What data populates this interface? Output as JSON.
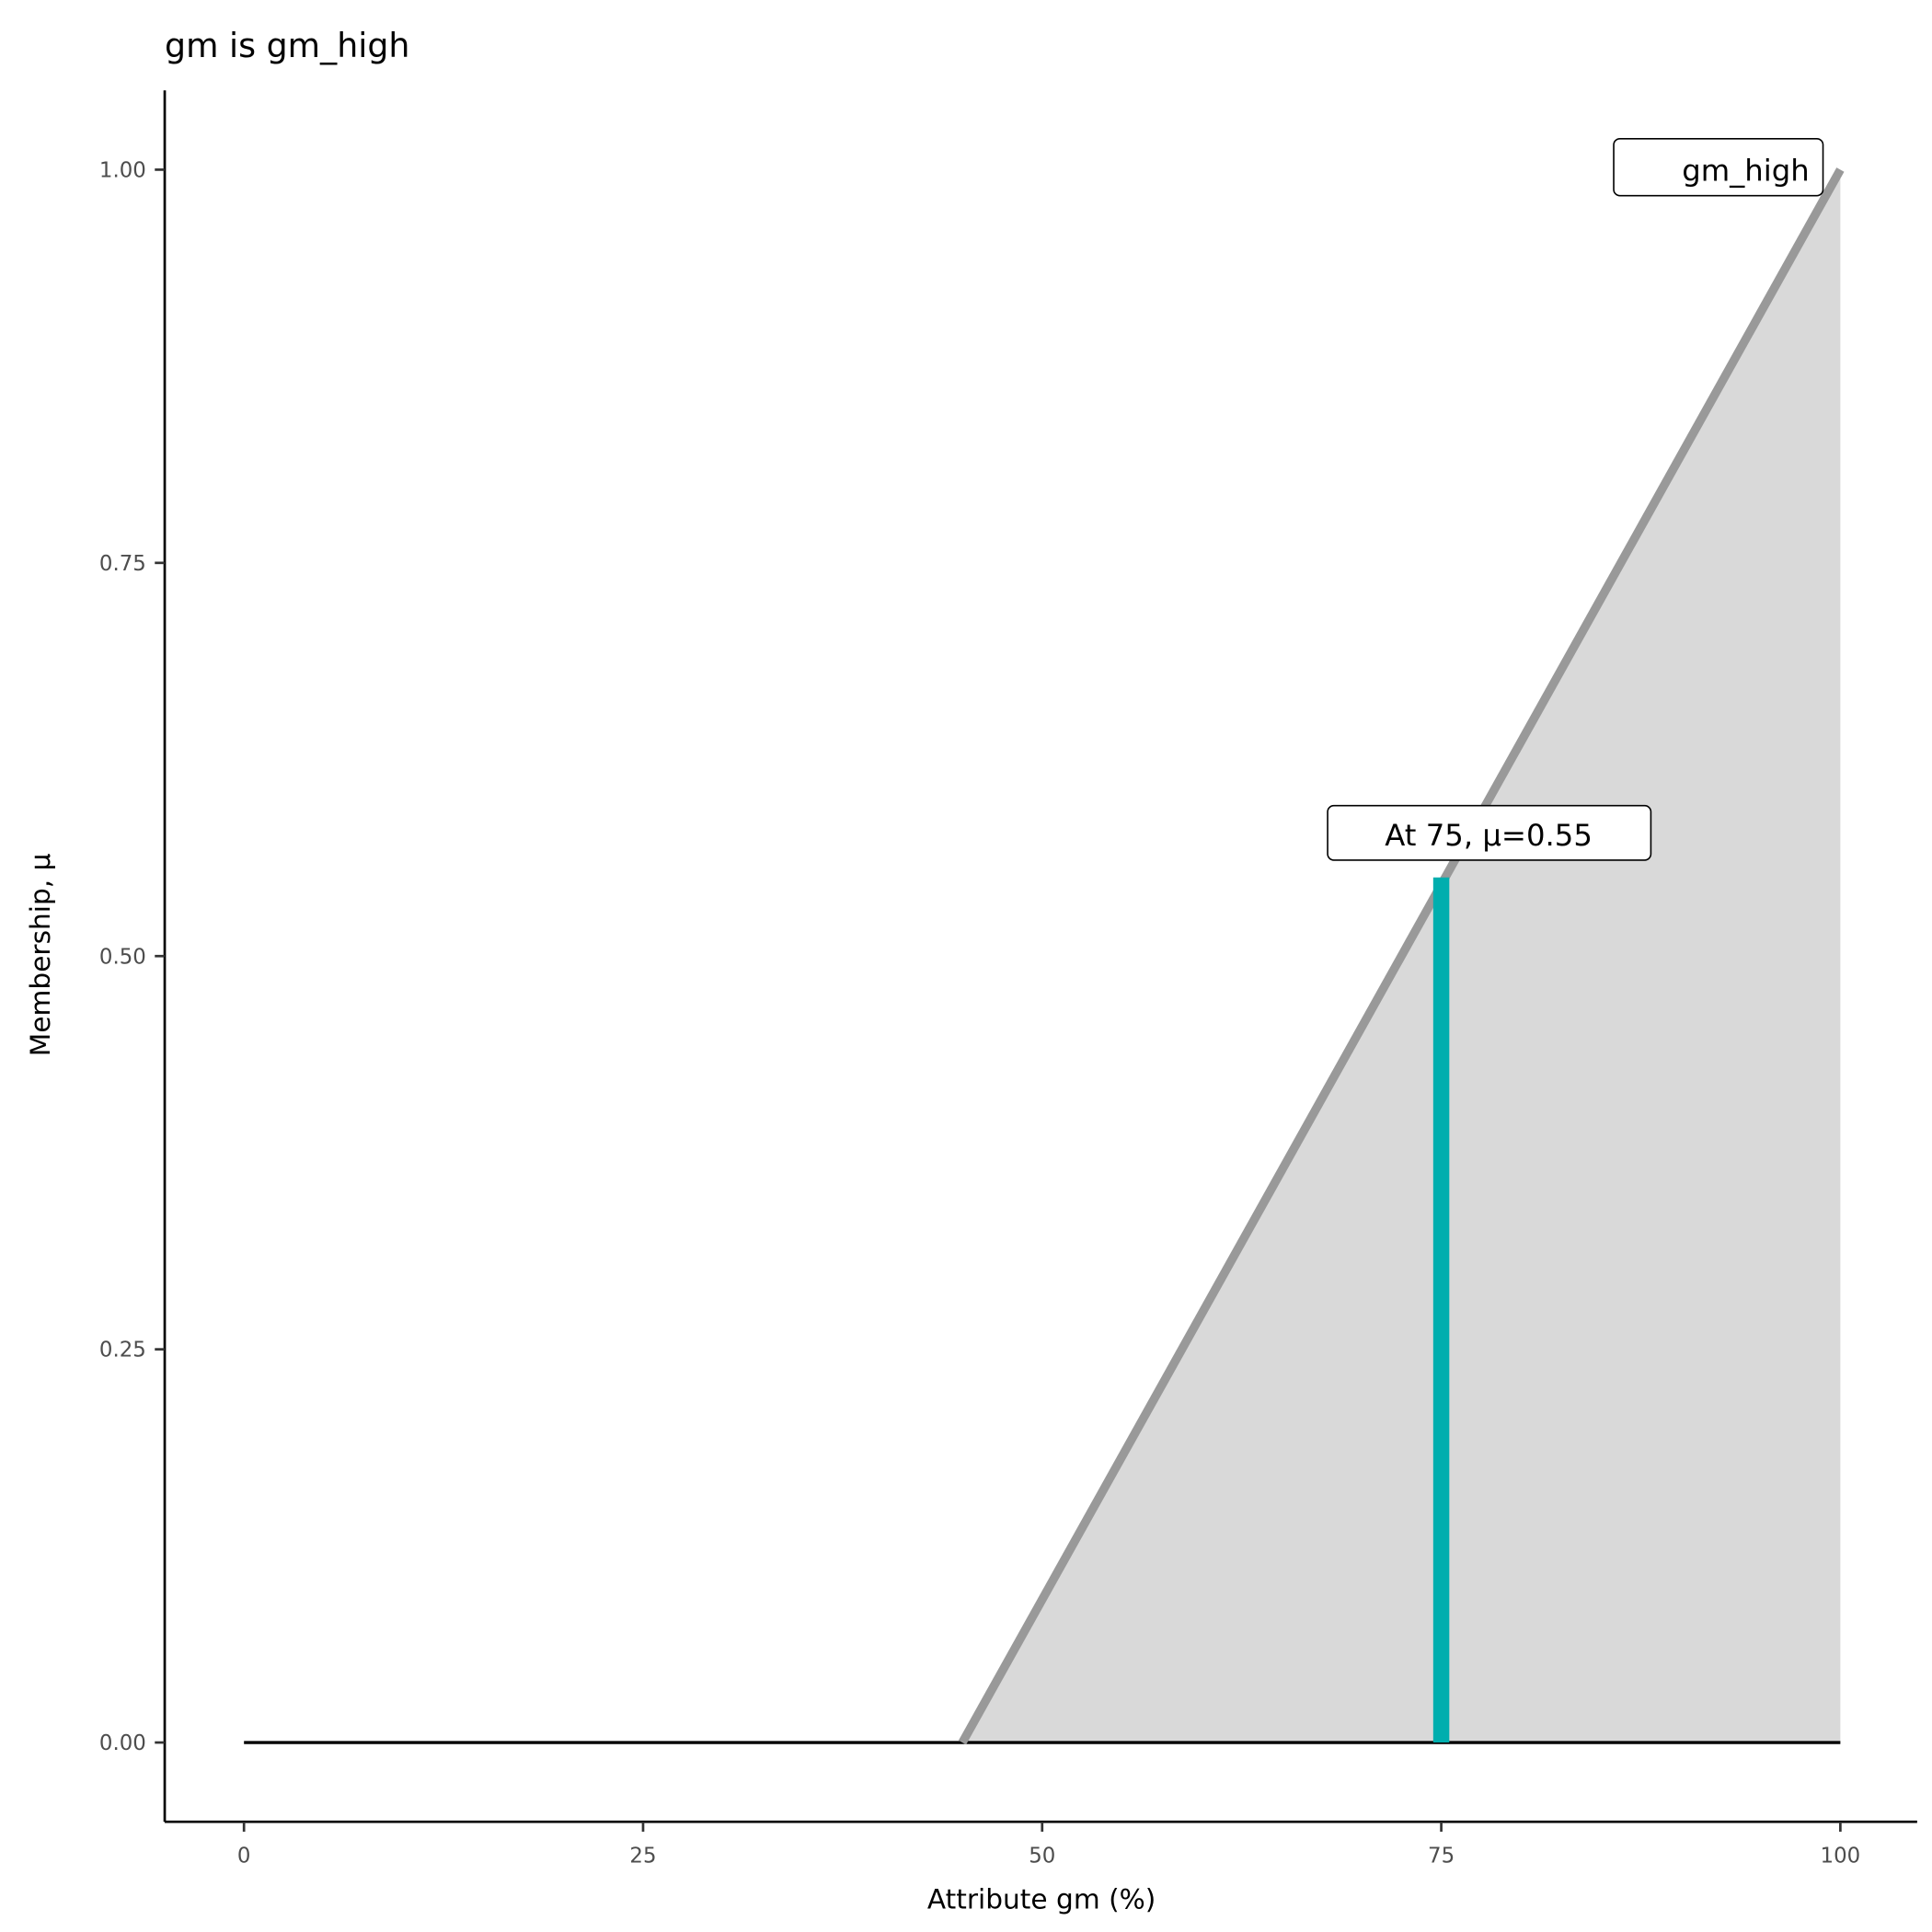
{
  "chart_data": {
    "type": "area",
    "title": "gm is gm_high",
    "xlabel": "Attribute gm (%)",
    "ylabel": "Membership, μ",
    "xlim": [
      0,
      100
    ],
    "ylim": [
      0,
      1
    ],
    "x_ticks": [
      "0",
      "25",
      "50",
      "75",
      "100"
    ],
    "y_ticks": [
      "0.00",
      "0.25",
      "0.50",
      "0.75",
      "1.00"
    ],
    "grid": false,
    "series": [
      {
        "name": "gm_high",
        "x": [
          0,
          45,
          100
        ],
        "y": [
          0,
          0,
          1
        ]
      }
    ],
    "marker": {
      "x": 75,
      "y": 0.55,
      "label": "At 75, μ=0.55"
    },
    "annotations": [
      {
        "text": "gm_high",
        "x": 100,
        "y": 1
      }
    ],
    "colors": {
      "line": "#999999",
      "fill": "#d9d9d9",
      "marker": "#00aeae",
      "baseline": "#000000"
    }
  }
}
